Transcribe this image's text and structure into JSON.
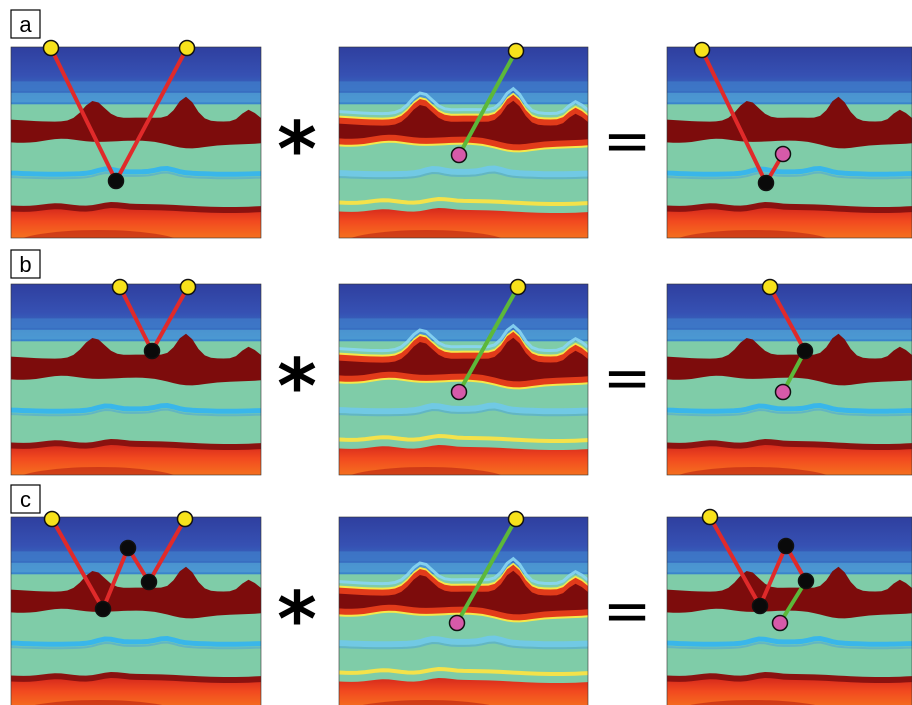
{
  "rows": [
    {
      "label": "a",
      "operators": {
        "convolve": "*",
        "equals": "="
      },
      "left_panel": {
        "nodes": [
          {
            "type": "source",
            "color": "yellow"
          },
          {
            "type": "scatter",
            "color": "black"
          },
          {
            "type": "receiver",
            "color": "yellow"
          }
        ],
        "path_color": "red"
      },
      "middle_panel": {
        "nodes": [
          {
            "type": "receiver",
            "color": "yellow"
          },
          {
            "type": "image-point",
            "color": "pink"
          }
        ],
        "path_color": "green"
      },
      "right_panel": {
        "nodes": [
          {
            "type": "source",
            "color": "yellow"
          },
          {
            "type": "scatter",
            "color": "black"
          },
          {
            "type": "image-point",
            "color": "pink"
          }
        ],
        "path_colors": [
          "red",
          "red"
        ]
      }
    },
    {
      "label": "b",
      "operators": {
        "convolve": "*",
        "equals": "="
      },
      "left_panel": {
        "nodes": [
          {
            "type": "source",
            "color": "yellow"
          },
          {
            "type": "scatter",
            "color": "black"
          },
          {
            "type": "receiver",
            "color": "yellow"
          }
        ],
        "path_color": "red"
      },
      "middle_panel": {
        "nodes": [
          {
            "type": "receiver",
            "color": "yellow"
          },
          {
            "type": "image-point",
            "color": "pink"
          }
        ],
        "path_color": "green"
      },
      "right_panel": {
        "nodes": [
          {
            "type": "source",
            "color": "yellow"
          },
          {
            "type": "scatter",
            "color": "black"
          },
          {
            "type": "image-point",
            "color": "pink"
          }
        ],
        "path_colors": [
          "red",
          "green"
        ]
      }
    },
    {
      "label": "c",
      "operators": {
        "convolve": "*",
        "equals": "="
      },
      "left_panel": {
        "nodes": [
          {
            "type": "source",
            "color": "yellow"
          },
          {
            "type": "scatter",
            "color": "black"
          },
          {
            "type": "scatter",
            "color": "black"
          },
          {
            "type": "scatter",
            "color": "black"
          },
          {
            "type": "receiver",
            "color": "yellow"
          }
        ],
        "path_color": "red"
      },
      "middle_panel": {
        "nodes": [
          {
            "type": "receiver",
            "color": "yellow"
          },
          {
            "type": "image-point",
            "color": "pink"
          }
        ],
        "path_color": "green"
      },
      "right_panel": {
        "nodes": [
          {
            "type": "source",
            "color": "yellow"
          },
          {
            "type": "scatter",
            "color": "black"
          },
          {
            "type": "scatter",
            "color": "black"
          },
          {
            "type": "scatter",
            "color": "black"
          },
          {
            "type": "image-point",
            "color": "pink"
          }
        ],
        "path_colors": [
          "red",
          "red",
          "red",
          "green"
        ]
      }
    }
  ],
  "colors": {
    "ray_red": "#e02a2a",
    "ray_green": "#5cb83a",
    "source_yellow": "#f7e21b",
    "image_pink": "#d65aa9",
    "scatter_black": "#0a0a0a",
    "layer_sky_dark": "#3344a6",
    "layer_sky_light": "#3b86d0",
    "layer_teal": "#7fcca8",
    "layer_dark_red": "#7d0c0c",
    "layer_cyan": "#39b6ea",
    "layer_deep_red": "#c01e1e",
    "layer_orange": "#f04020"
  },
  "icons": {
    "convolution_operator": "asterisk-glyph",
    "equals_operator": "equals-glyph",
    "source": "yellow-circle",
    "scatter_point": "black-circle",
    "image_point": "pink-circle"
  }
}
